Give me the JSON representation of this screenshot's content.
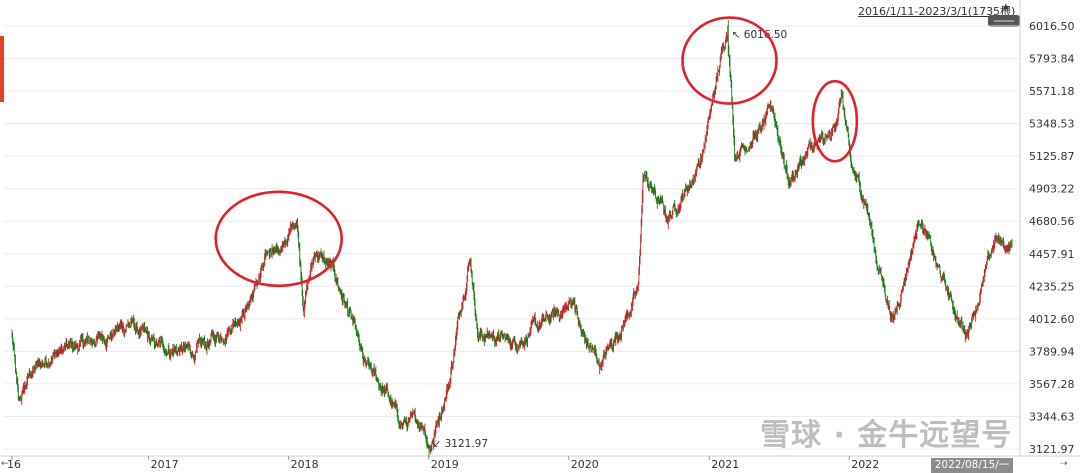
{
  "header": {
    "date_range": "2016/1/11-2023/3/1(1735根)",
    "pin_glyph": "★"
  },
  "crosshair_date": "2022/08/15/一",
  "nav": {
    "left_arrow": "←",
    "right_arrow": "⇢"
  },
  "watermark": {
    "site": "雪球 · 金牛远望号",
    "account": "金牛远望号"
  },
  "annotations": {
    "high": "↖ 6016.50",
    "low": "↙ 3121.97"
  },
  "colors": {
    "up": "#c2272d",
    "down": "#1a7a1a",
    "circle": "#e3202a",
    "grid": "#ececec",
    "axis_text": "#333333"
  },
  "chart_data": {
    "type": "candlestick",
    "title": "",
    "period": "2016/1/11-2023/3/1",
    "bar_count": 1735,
    "ylim": [
      3100,
      6080
    ],
    "y_ticks": [
      6016.5,
      5793.84,
      5571.18,
      5348.53,
      5125.87,
      4903.22,
      4680.56,
      4457.91,
      4235.25,
      4012.6,
      3789.94,
      3567.28,
      3344.63,
      3121.97
    ],
    "y_tick_labels": [
      "6016.50",
      "5793.84",
      "5571.18",
      "5348.53",
      "5125.87",
      "4903.22",
      "4680.56",
      "4457.91",
      "4235.25",
      "4012.60",
      "3789.94",
      "3567.28",
      "3344.63",
      "3121.97"
    ],
    "x_labels": [
      "16",
      "2017",
      "2018",
      "2019",
      "2020",
      "2021",
      "2022"
    ],
    "x_label_dates": [
      "2016-01-11",
      "2017-01-01",
      "2018-01-01",
      "2019-01-01",
      "2020-01-01",
      "2021-01-01",
      "2022-01-01"
    ],
    "end_date": "2023-03-01",
    "price_path": [
      [
        "2016-01-11",
        3900
      ],
      [
        "2016-01-28",
        3420
      ],
      [
        "2016-03-01",
        3650
      ],
      [
        "2016-05-01",
        3780
      ],
      [
        "2016-08-01",
        3850
      ],
      [
        "2016-11-15",
        3980
      ],
      [
        "2017-01-15",
        3830
      ],
      [
        "2017-05-01",
        3780
      ],
      [
        "2017-07-15",
        3920
      ],
      [
        "2017-09-15",
        4100
      ],
      [
        "2017-11-22",
        4520
      ],
      [
        "2017-12-15",
        4470
      ],
      [
        "2018-01-22",
        4710
      ],
      [
        "2018-02-09",
        4120
      ],
      [
        "2018-03-12",
        4480
      ],
      [
        "2018-04-30",
        4320
      ],
      [
        "2018-06-15",
        4000
      ],
      [
        "2018-07-15",
        3700
      ],
      [
        "2018-09-15",
        3500
      ],
      [
        "2018-10-18",
        3300
      ],
      [
        "2018-12-20",
        3300
      ],
      [
        "2019-01-03",
        3121.97
      ],
      [
        "2019-02-25",
        3600
      ],
      [
        "2019-03-25",
        4100
      ],
      [
        "2019-04-19",
        4450
      ],
      [
        "2019-05-10",
        3900
      ],
      [
        "2019-06-15",
        3900
      ],
      [
        "2019-08-10",
        3850
      ],
      [
        "2019-10-15",
        3960
      ],
      [
        "2019-12-31",
        4100
      ],
      [
        "2020-01-15",
        4150
      ],
      [
        "2020-02-03",
        3900
      ],
      [
        "2020-03-23",
        3700
      ],
      [
        "2020-05-15",
        3950
      ],
      [
        "2020-06-30",
        4200
      ],
      [
        "2020-07-13",
        5000
      ],
      [
        "2020-09-15",
        4700
      ],
      [
        "2020-11-15",
        4950
      ],
      [
        "2020-12-15",
        5150
      ],
      [
        "2021-01-25",
        5700
      ],
      [
        "2021-02-18",
        6016.5
      ],
      [
        "2021-03-09",
        5150
      ],
      [
        "2021-05-15",
        5300
      ],
      [
        "2021-06-15",
        5450
      ],
      [
        "2021-07-28",
        4950
      ],
      [
        "2021-09-15",
        5150
      ],
      [
        "2021-11-15",
        5250
      ],
      [
        "2021-12-13",
        5550
      ],
      [
        "2022-01-05",
        5050
      ],
      [
        "2022-02-15",
        4800
      ],
      [
        "2022-03-15",
        4400
      ],
      [
        "2022-04-26",
        4000
      ],
      [
        "2022-07-05",
        4720
      ],
      [
        "2022-08-15",
        4380
      ],
      [
        "2022-10-31",
        3900
      ],
      [
        "2022-12-15",
        4250
      ],
      [
        "2023-01-15",
        4550
      ],
      [
        "2023-03-01",
        4500
      ]
    ],
    "highlight_circles": [
      "2018 peak",
      "2021 peak",
      "late-2021 peak"
    ],
    "annotations": [
      {
        "label": "6016.50",
        "date": "2021-02-18",
        "price": 6016.5,
        "kind": "high"
      },
      {
        "label": "3121.97",
        "date": "2019-01-03",
        "price": 3121.97,
        "kind": "low"
      }
    ],
    "grid": true,
    "y_axis_position": "right"
  }
}
